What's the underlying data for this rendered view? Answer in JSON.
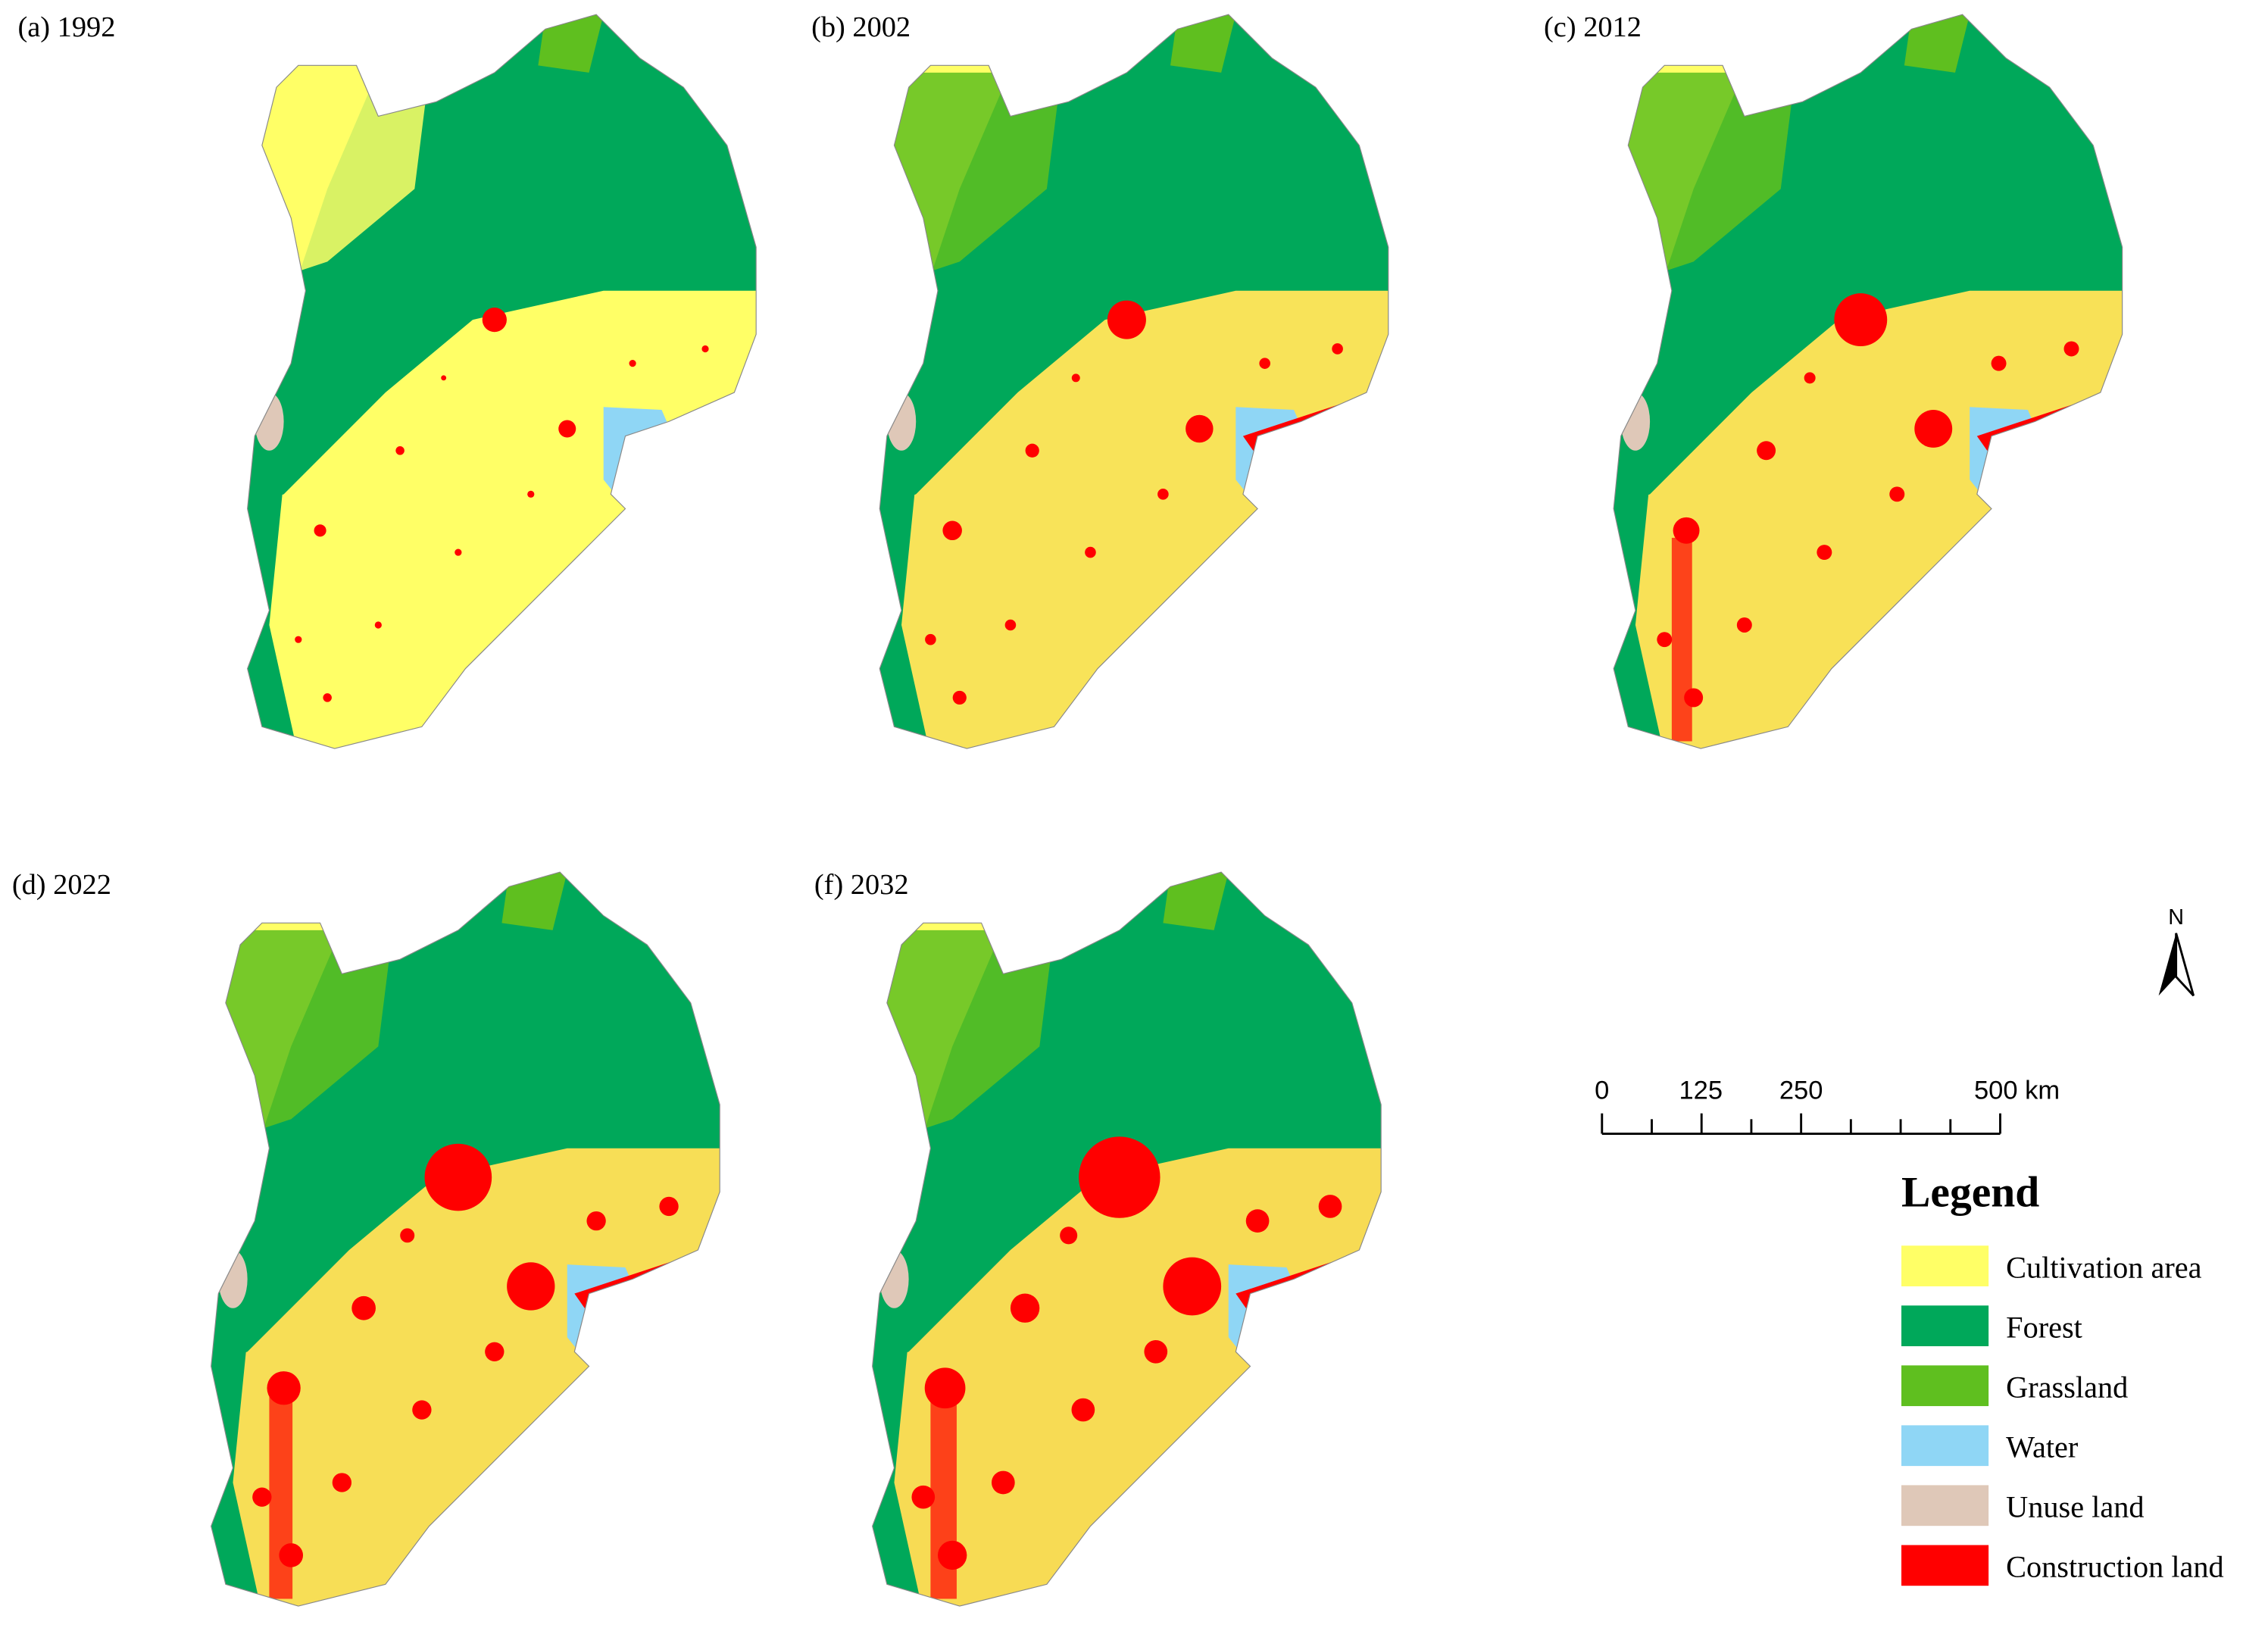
{
  "panels": [
    {
      "label": "(a) 1992"
    },
    {
      "label": "(b) 2002"
    },
    {
      "label": "(c)  2012"
    },
    {
      "label": "(d) 2022"
    },
    {
      "label": "(f) 2032"
    }
  ],
  "north_arrow": {
    "label": "N"
  },
  "scale_bar": {
    "labels": [
      "0",
      "125",
      "250",
      "500 km"
    ]
  },
  "legend": {
    "title": "Legend",
    "items": [
      {
        "label": "Cultivation area",
        "color": "#ffff66"
      },
      {
        "label": "Forest",
        "color": "#00a85a"
      },
      {
        "label": "Grassland",
        "color": "#5fbf1f"
      },
      {
        "label": "Water",
        "color": "#8fd6f5"
      },
      {
        "label": "Unuse land",
        "color": "#dfc8b8"
      },
      {
        "label": "Construction land",
        "color": "#ff0000"
      }
    ]
  }
}
